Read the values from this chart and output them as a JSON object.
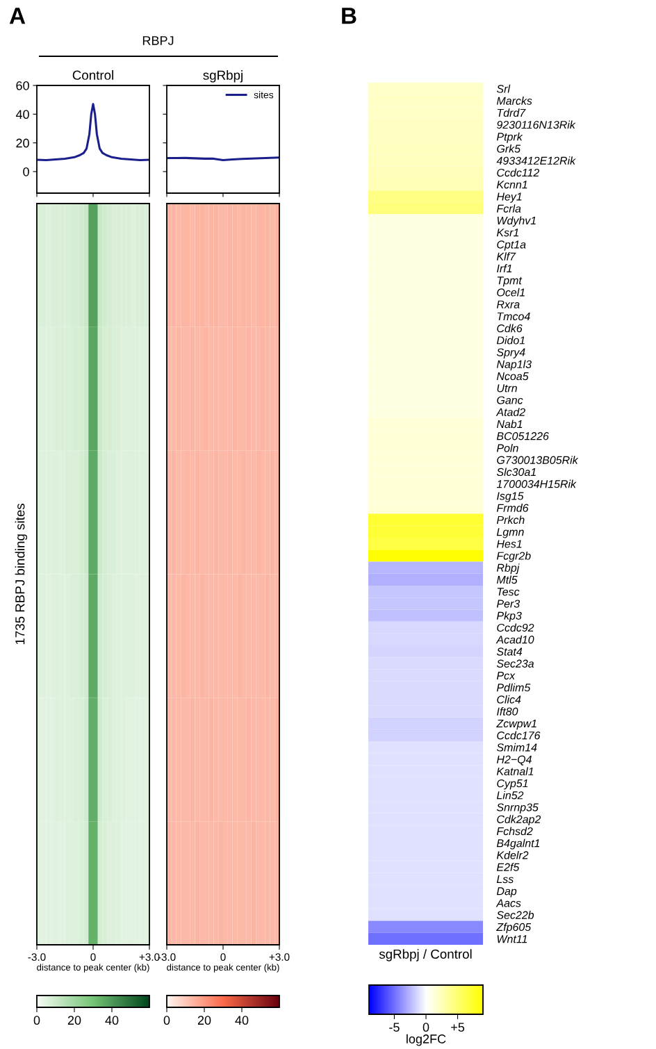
{
  "chart_data": [
    {
      "type": "line",
      "title": "Control",
      "annotations": [
        "A",
        "RBPJ"
      ],
      "series": [
        {
          "color": "#1a1f8c",
          "x": [
            -3,
            -2.5,
            -2,
            -1.5,
            -1,
            -0.7,
            -0.5,
            -0.35,
            -0.2,
            -0.1,
            0,
            0.1,
            0.2,
            0.35,
            0.5,
            0.7,
            1,
            1.5,
            2,
            2.5,
            3
          ],
          "values": [
            8.2,
            8,
            8.5,
            9,
            10,
            11.5,
            13,
            16,
            26,
            40,
            47,
            40,
            26,
            16,
            13,
            11.5,
            10,
            9,
            8.5,
            8,
            8.2
          ]
        }
      ],
      "xlim": [
        -3,
        3
      ],
      "xticks": [
        {
          "value": -3,
          "label": null
        },
        {
          "value": 0,
          "label": null
        },
        {
          "value": 3,
          "label": null
        }
      ],
      "ylim": [
        -15,
        60
      ],
      "yticks": [
        0,
        20,
        40,
        60
      ],
      "tick_labels": "y"
    },
    {
      "type": "line",
      "title": "sgRbpj",
      "legend": "top right",
      "series": [
        {
          "name": "sites",
          "color": "#1a1f8c",
          "x": [
            -3,
            -2,
            -1,
            -0.5,
            0,
            0.5,
            1,
            2,
            3
          ],
          "values": [
            9.4,
            9.5,
            9,
            9,
            8,
            8.5,
            8.8,
            9.3,
            9.8
          ]
        }
      ],
      "xlim": [
        -3,
        3
      ],
      "xticks": [
        {
          "value": -3,
          "label": null
        },
        {
          "value": 0,
          "label": null
        },
        {
          "value": 3,
          "label": null
        }
      ],
      "ylim": [
        -15,
        60
      ],
      "yticks": [
        0,
        20,
        40,
        60
      ],
      "tick_labels": false
    },
    {
      "type": "heatmap",
      "xlabel": "distance to peak center (kb)",
      "ylabel": "1735 RBPJ binding sites",
      "x": [
        -2.875,
        -2.625,
        -2.375,
        -2.125,
        -1.875,
        -1.625,
        -1.375,
        -1.125,
        -0.875,
        -0.625,
        -0.375,
        -0.125,
        0.125,
        0.375,
        0.625,
        0.875,
        1.125,
        1.375,
        1.625,
        1.875,
        2.125,
        2.375,
        2.625,
        2.875
      ],
      "y_categories": [
        null,
        null,
        null,
        null,
        null,
        null
      ],
      "cells": [
        [
          7,
          7,
          6,
          7,
          7,
          7,
          7,
          8,
          8,
          9,
          11,
          38,
          38,
          11,
          9,
          8,
          7,
          7,
          7,
          7,
          6,
          7,
          7,
          7
        ],
        [
          6,
          6,
          6,
          6,
          7,
          7,
          7,
          7,
          8,
          8,
          10,
          37,
          37,
          10,
          8,
          8,
          7,
          7,
          6,
          6,
          6,
          6,
          6,
          6
        ],
        [
          6,
          6,
          6,
          6,
          6,
          6,
          7,
          7,
          7,
          8,
          10,
          36,
          36,
          10,
          8,
          7,
          7,
          6,
          6,
          6,
          6,
          6,
          6,
          6
        ],
        [
          6,
          6,
          5,
          6,
          6,
          6,
          6,
          7,
          7,
          8,
          9,
          36,
          36,
          9,
          8,
          7,
          6,
          6,
          6,
          6,
          6,
          5,
          6,
          6
        ],
        [
          5,
          5,
          5,
          5,
          6,
          6,
          6,
          6,
          7,
          7,
          9,
          35,
          35,
          9,
          7,
          7,
          6,
          6,
          6,
          5,
          5,
          5,
          5,
          5
        ],
        [
          5,
          5,
          5,
          5,
          5,
          5,
          6,
          6,
          6,
          7,
          8,
          34,
          34,
          8,
          7,
          6,
          6,
          6,
          5,
          5,
          5,
          5,
          5,
          5
        ]
      ],
      "colors": [
        "#f7fcf5",
        "#74c476",
        "#00441b"
      ],
      "xlim": [
        -3,
        3
      ],
      "xticks": [
        {
          "value": -3,
          "label": "-3.0"
        },
        0,
        {
          "value": 3,
          "label": "+3.0"
        }
      ],
      "clim": [
        0,
        60
      ],
      "cticks": [
        0,
        20,
        40
      ]
    },
    {
      "type": "heatmap",
      "xlabel": "distance to peak center (kb)",
      "x": [
        -2.875,
        -2.625,
        -2.375,
        -2.125,
        -1.875,
        -1.625,
        -1.375,
        -1.125,
        -0.875,
        -0.625,
        -0.375,
        -0.125,
        0.125,
        0.375,
        0.625,
        0.875,
        1.125,
        1.375,
        1.625,
        1.875,
        2.125,
        2.375,
        2.625,
        2.875
      ],
      "y_categories": [
        null,
        null,
        null,
        null,
        null,
        null
      ],
      "cells": [
        [
          14,
          14,
          13,
          14,
          14,
          13,
          14,
          14,
          13,
          14,
          14,
          13,
          13,
          14,
          14,
          13,
          14,
          14,
          13,
          14,
          14,
          14,
          13,
          14
        ],
        [
          13,
          13,
          14,
          13,
          13,
          14,
          13,
          13,
          14,
          13,
          13,
          13,
          13,
          13,
          14,
          13,
          13,
          14,
          13,
          13,
          14,
          13,
          13,
          13
        ],
        [
          13,
          14,
          13,
          13,
          14,
          13,
          14,
          13,
          13,
          13,
          14,
          13,
          13,
          14,
          13,
          13,
          14,
          13,
          13,
          14,
          13,
          13,
          14,
          13
        ],
        [
          13,
          13,
          13,
          14,
          13,
          13,
          13,
          14,
          13,
          13,
          13,
          13,
          13,
          13,
          13,
          14,
          13,
          13,
          13,
          13,
          13,
          14,
          13,
          13
        ],
        [
          13,
          13,
          13,
          13,
          13,
          14,
          13,
          13,
          13,
          14,
          13,
          13,
          13,
          13,
          13,
          13,
          13,
          14,
          13,
          13,
          13,
          13,
          13,
          14
        ],
        [
          14,
          13,
          13,
          13,
          13,
          13,
          14,
          13,
          13,
          13,
          13,
          14,
          13,
          13,
          13,
          13,
          13,
          13,
          14,
          13,
          13,
          13,
          13,
          13
        ]
      ],
      "colors": [
        "#fff5f0",
        "#fb6a4a",
        "#67000d"
      ],
      "xlim": [
        -3,
        3
      ],
      "xticks": [
        {
          "value": -3,
          "label": "-3.0"
        },
        0,
        {
          "value": 3,
          "label": "+3.0"
        }
      ],
      "clim": [
        0,
        60
      ],
      "cticks": [
        0,
        20,
        40
      ]
    },
    {
      "type": "heatmap",
      "annotations": [
        "B"
      ],
      "xlabel": "sgRbpj / Control",
      "clabel": "log2FC",
      "categories": [
        null
      ],
      "y_categories": [
        "Srl",
        "Marcks",
        "Tdrd7",
        "9230116N13Rik",
        "Ptprk",
        "Grk5",
        "4933412E12Rik",
        "Ccdc112",
        "Kcnn1",
        "Hey1",
        "Fcrla",
        "Wdyhv1",
        "Ksr1",
        "Cpt1a",
        "Klf7",
        "Irf1",
        "Tpmt",
        "Ocel1",
        "Rxra",
        "Tmco4",
        "Cdk6",
        "Dido1",
        "Spry4",
        "Nap1l3",
        "Ncoa5",
        "Utrn",
        "Ganc",
        "Atad2",
        "Nab1",
        "BC051226",
        "Poln",
        "G730013B05Rik",
        "Slc30a1",
        "1700034H15Rik",
        "Isg15",
        "Frmd6",
        "Prkch",
        "Lgmn",
        "Hes1",
        "Fcgr2b",
        "Rbpj",
        "Mtl5",
        "Tesc",
        "Per3",
        "Pkp3",
        "Ccdc92",
        "Acad10",
        "Stat4",
        "Sec23a",
        "Pcx",
        "Pdlim5",
        "Clic4",
        "Ift80",
        "Zcwpw1",
        "Ccdc176",
        "Smim14",
        "H2−Q4",
        "Katnal1",
        "Cyp51",
        "Lin52",
        "Snrnp35",
        "Cdk2ap2",
        "Fchsd2",
        "B4galnt1",
        "Kdelr2",
        "E2f5",
        "Lss",
        "Dap",
        "Aacs",
        "Sec22b",
        "Zfp605",
        "Wnt11"
      ],
      "cells": [
        [
          1.9
        ],
        [
          2.0
        ],
        [
          2.0
        ],
        [
          2.1
        ],
        [
          2.1
        ],
        [
          2.2
        ],
        [
          2.3
        ],
        [
          2.4
        ],
        [
          2.5
        ],
        [
          4.3
        ],
        [
          4.6
        ],
        [
          1.0
        ],
        [
          1.0
        ],
        [
          1.0
        ],
        [
          1.0
        ],
        [
          1.0
        ],
        [
          1.0
        ],
        [
          1.0
        ],
        [
          1.0
        ],
        [
          1.0
        ],
        [
          1.0
        ],
        [
          1.0
        ],
        [
          1.0
        ],
        [
          1.0
        ],
        [
          1.0
        ],
        [
          1.0
        ],
        [
          1.0
        ],
        [
          1.0
        ],
        [
          1.4
        ],
        [
          1.4
        ],
        [
          1.4
        ],
        [
          1.4
        ],
        [
          1.4
        ],
        [
          1.4
        ],
        [
          1.4
        ],
        [
          1.4
        ],
        [
          7.2
        ],
        [
          7.0
        ],
        [
          6.6
        ],
        [
          8.8
        ],
        [
          -2.6
        ],
        [
          -2.8
        ],
        [
          -2.0
        ],
        [
          -2.0
        ],
        [
          -2.2
        ],
        [
          -1.4
        ],
        [
          -1.4
        ],
        [
          -1.5
        ],
        [
          -1.3
        ],
        [
          -1.3
        ],
        [
          -1.3
        ],
        [
          -1.3
        ],
        [
          -1.3
        ],
        [
          -1.6
        ],
        [
          -1.6
        ],
        [
          -1.1
        ],
        [
          -1.1
        ],
        [
          -1.1
        ],
        [
          -1.1
        ],
        [
          -1.1
        ],
        [
          -1.1
        ],
        [
          -1.1
        ],
        [
          -1.1
        ],
        [
          -1.1
        ],
        [
          -1.1
        ],
        [
          -1.1
        ],
        [
          -1.1
        ],
        [
          -1.1
        ],
        [
          -1.1
        ],
        [
          -1.1
        ],
        [
          -4.2
        ],
        [
          -5.0
        ]
      ],
      "colors": [
        "#0000ff",
        "#ffffff",
        "#ffff00"
      ],
      "clim": [
        -9,
        9
      ],
      "cticks": [
        -5,
        0,
        {
          "value": 5,
          "label": "+5"
        }
      ]
    }
  ]
}
